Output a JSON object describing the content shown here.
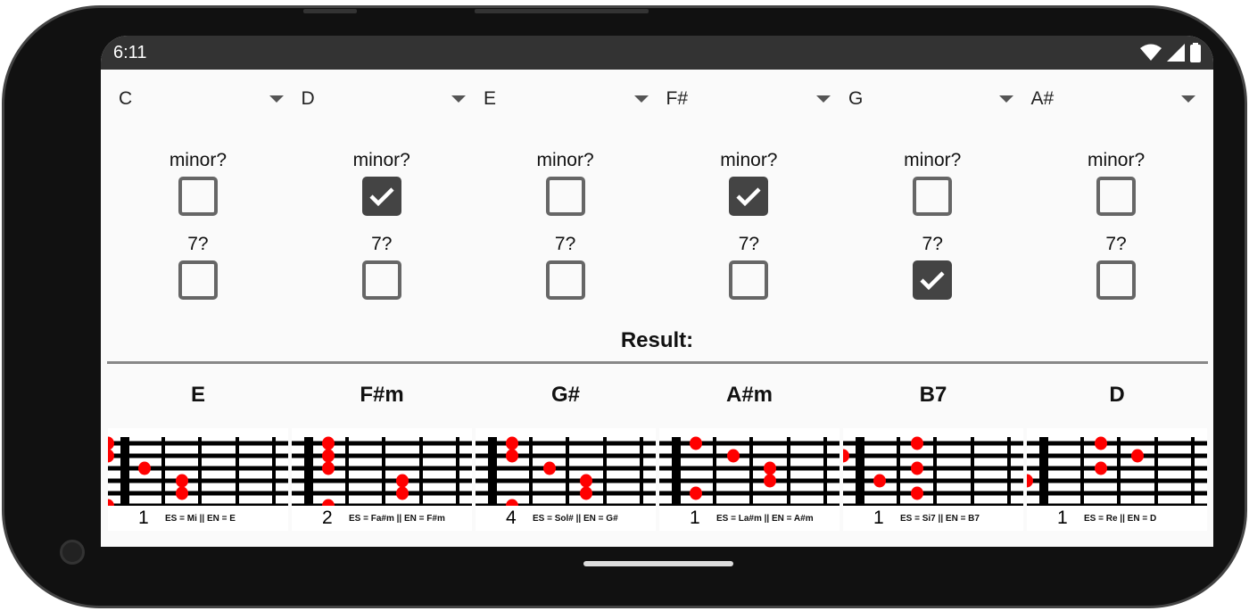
{
  "status": {
    "time": "6:11",
    "icons": [
      "wifi-icon",
      "signal-icon",
      "battery-icon"
    ]
  },
  "spinners": [
    "C",
    "D",
    "E",
    "F#",
    "G",
    "A#"
  ],
  "labels": {
    "minor": "minor?",
    "seventh": "7?",
    "result": "Result:"
  },
  "minor": [
    false,
    true,
    false,
    true,
    false,
    false
  ],
  "seventh": [
    false,
    false,
    false,
    false,
    true,
    false
  ],
  "chords": [
    {
      "name": "E",
      "position": "1",
      "text": "ES = Mi  ||  EN = E",
      "dots": [
        [
          0,
          0
        ],
        [
          1,
          0
        ],
        [
          2,
          1
        ],
        [
          3,
          2
        ],
        [
          4,
          2
        ],
        [
          5,
          0
        ]
      ]
    },
    {
      "name": "F#m",
      "position": "2",
      "text": "ES = Fa#m  ||  EN = F#m",
      "dots": [
        [
          0,
          1
        ],
        [
          1,
          1
        ],
        [
          2,
          1
        ],
        [
          5,
          1
        ],
        [
          3,
          3
        ],
        [
          4,
          3
        ]
      ]
    },
    {
      "name": "G#",
      "position": "4",
      "text": "ES = Sol#  ||  EN = G#",
      "dots": [
        [
          0,
          1
        ],
        [
          1,
          1
        ],
        [
          5,
          1
        ],
        [
          2,
          2
        ],
        [
          3,
          3
        ],
        [
          4,
          3
        ]
      ]
    },
    {
      "name": "A#m",
      "position": "1",
      "text": "ES = La#m  ||  EN = A#m",
      "dots": [
        [
          0,
          1
        ],
        [
          4,
          1
        ],
        [
          1,
          2
        ],
        [
          2,
          3
        ],
        [
          3,
          3
        ]
      ]
    },
    {
      "name": "B7",
      "position": "1",
      "text": "ES = Si7  ||  EN = B7",
      "dots": [
        [
          1,
          0
        ],
        [
          3,
          1
        ],
        [
          0,
          2
        ],
        [
          2,
          2
        ],
        [
          4,
          2
        ]
      ]
    },
    {
      "name": "D",
      "position": "1",
      "text": "ES = Re  ||  EN = D",
      "dots": [
        [
          3,
          0
        ],
        [
          0,
          2
        ],
        [
          2,
          2
        ],
        [
          1,
          3
        ]
      ]
    }
  ],
  "colors": {
    "dot": "#ff0000",
    "checked": "#444444"
  }
}
